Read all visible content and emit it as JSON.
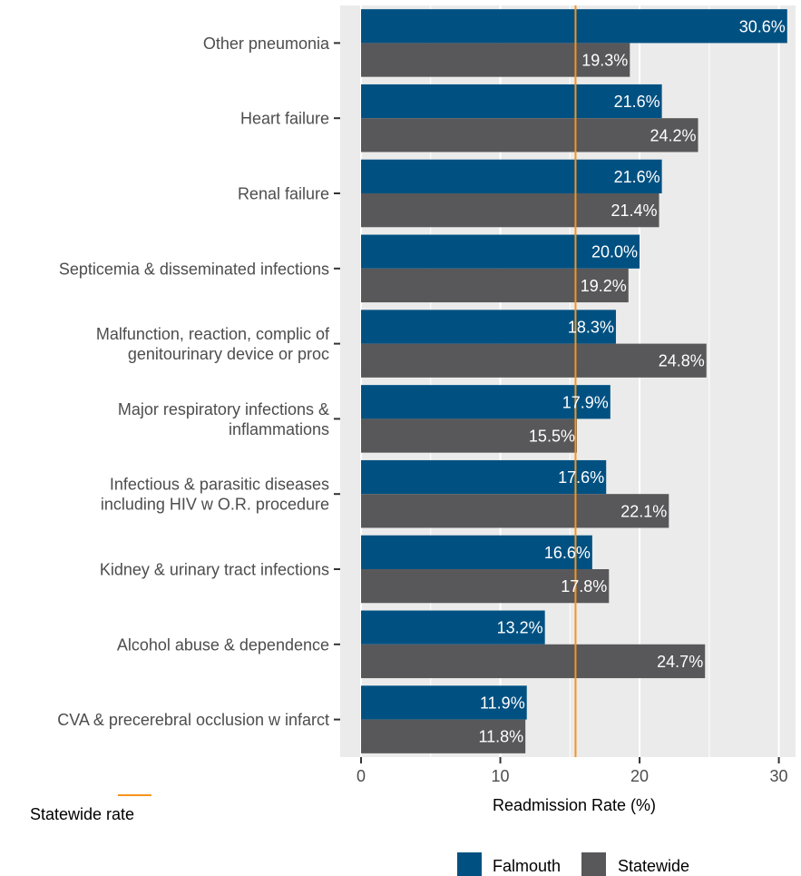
{
  "chart_data": {
    "type": "bar",
    "orientation": "horizontal",
    "categories": [
      [
        "Other pneumonia"
      ],
      [
        "Heart failure"
      ],
      [
        "Renal failure"
      ],
      [
        "Septicemia & disseminated infections"
      ],
      [
        "Malfunction, reaction, complic of",
        "genitourinary device or proc"
      ],
      [
        "Major respiratory infections &",
        "inflammations"
      ],
      [
        "Infectious & parasitic diseases",
        "including HIV w O.R. procedure"
      ],
      [
        "Kidney & urinary tract infections"
      ],
      [
        "Alcohol abuse & dependence"
      ],
      [
        "CVA & precerebral occlusion w infarct"
      ]
    ],
    "series": [
      {
        "name": "Falmouth",
        "color": "#005182",
        "values": [
          30.6,
          21.6,
          21.6,
          20.0,
          18.3,
          17.9,
          17.6,
          16.6,
          13.2,
          11.9
        ],
        "labels": [
          "30.6%",
          "21.6%",
          "21.6%",
          "20.0%",
          "18.3%",
          "17.9%",
          "17.6%",
          "16.6%",
          "13.2%",
          "11.9%"
        ]
      },
      {
        "name": "Statewide",
        "color": "#58585a",
        "values": [
          19.3,
          24.2,
          21.4,
          19.2,
          24.8,
          15.5,
          22.1,
          17.8,
          24.7,
          11.8
        ],
        "labels": [
          "19.3%",
          "24.2%",
          "21.4%",
          "19.2%",
          "24.8%",
          "15.5%",
          "22.1%",
          "17.8%",
          "24.7%",
          "11.8%"
        ]
      }
    ],
    "reference_line": {
      "value": 15.4,
      "label": "Statewide rate",
      "color": "#f7941d"
    },
    "xlabel": "Readmission Rate (%)",
    "ylabel": "",
    "xlim": [
      -1.5,
      31.2
    ],
    "ticks": [
      0,
      10,
      20,
      30
    ],
    "tick_labels": [
      "0",
      "10",
      "20",
      "30"
    ],
    "grid": true,
    "panel_background": "#ebebeb",
    "legend_position": "bottom"
  }
}
